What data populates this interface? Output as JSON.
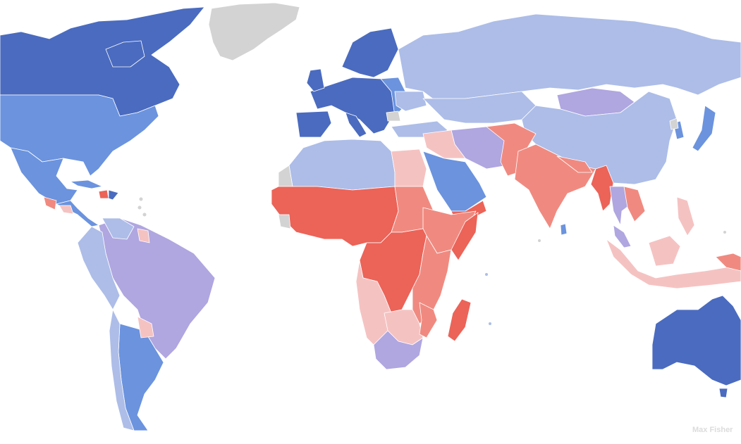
{
  "credit": "Max Fisher"
}
